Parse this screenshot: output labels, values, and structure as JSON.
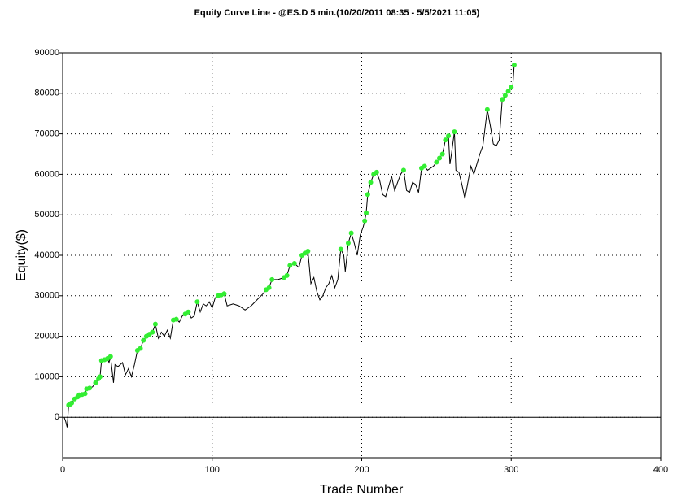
{
  "chart_data": {
    "type": "line",
    "title": "Equity Curve Line - @ES.D 5 min.(10/20/2011 08:35 - 5/5/2021 11:05)",
    "x_label": "Trade Number",
    "y_label": "Equity($)",
    "xlim": [
      0,
      400
    ],
    "xticks": [
      0,
      100,
      200,
      300,
      400
    ],
    "ylim": [
      -10000,
      90000
    ],
    "yticks": [
      0,
      10000,
      20000,
      30000,
      40000,
      50000,
      60000,
      70000,
      80000,
      90000
    ],
    "grid": true,
    "color": "#000000",
    "x": [
      1,
      2,
      3,
      4,
      5,
      6,
      8,
      10,
      11,
      13,
      15,
      16,
      18,
      20,
      22,
      24,
      25,
      26,
      28,
      30,
      31,
      32,
      34,
      35,
      37,
      40,
      42,
      44,
      46,
      48,
      50,
      52,
      54,
      56,
      58,
      60,
      62,
      64,
      66,
      68,
      70,
      72,
      74,
      76,
      78,
      80,
      82,
      84,
      86,
      88,
      90,
      92,
      94,
      96,
      98,
      100,
      102,
      104,
      106,
      108,
      110,
      114,
      118,
      122,
      126,
      130,
      134,
      136,
      138,
      140,
      144,
      148,
      150,
      152,
      155,
      158,
      160,
      162,
      164,
      166,
      168,
      170,
      172,
      174,
      176,
      178,
      180,
      182,
      184,
      186,
      188,
      189,
      191,
      193,
      195,
      197,
      199,
      201,
      202,
      203,
      204,
      206,
      208,
      210,
      212,
      214,
      216,
      218,
      220,
      222,
      224,
      226,
      228,
      230,
      232,
      234,
      236,
      238,
      240,
      242,
      244,
      246,
      248,
      250,
      252,
      254,
      256,
      258,
      259,
      260,
      262,
      263,
      265,
      267,
      269,
      271,
      273,
      275,
      277,
      279,
      281,
      284,
      286,
      288,
      290,
      292,
      294,
      296,
      298,
      300,
      301,
      302
    ],
    "values": [
      0,
      -1000,
      -2500,
      3000,
      3200,
      3500,
      4500,
      5000,
      5500,
      5600,
      5800,
      7000,
      7200,
      7500,
      8500,
      9500,
      10000,
      14000,
      14200,
      14500,
      13500,
      15000,
      8500,
      13000,
      12500,
      13500,
      10500,
      12000,
      10000,
      13000,
      16500,
      17000,
      19000,
      20000,
      20500,
      21000,
      23000,
      19500,
      21000,
      20000,
      21500,
      19500,
      24000,
      24200,
      23500,
      25000,
      25500,
      26000,
      24500,
      25000,
      28500,
      26000,
      28000,
      27500,
      28500,
      27000,
      29500,
      30000,
      30200,
      30500,
      27500,
      28000,
      27500,
      26500,
      27500,
      29000,
      30500,
      31500,
      32000,
      34000,
      34000,
      34500,
      35000,
      37500,
      38000,
      37000,
      40000,
      40500,
      41000,
      33000,
      34500,
      31000,
      29000,
      30000,
      32000,
      33000,
      35000,
      32000,
      34000,
      41500,
      40000,
      36000,
      43000,
      45500,
      43000,
      40000,
      45000,
      47000,
      48500,
      50500,
      55000,
      58000,
      60000,
      60500,
      58500,
      55000,
      54500,
      57000,
      59500,
      56000,
      58000,
      60000,
      61000,
      56000,
      55500,
      58000,
      57500,
      55500,
      61500,
      62000,
      61000,
      61500,
      62000,
      63000,
      64000,
      65000,
      68500,
      69500,
      62500,
      65000,
      70500,
      61000,
      60500,
      57500,
      54000,
      58000,
      62000,
      60000,
      62500,
      65000,
      67000,
      76000,
      72000,
      67500,
      67000,
      68500,
      78500,
      79500,
      80500,
      81500,
      81500,
      87000
    ],
    "highs": {
      "type": "scatter",
      "color": "#33ee33",
      "x": [
        4,
        5,
        6,
        8,
        10,
        11,
        13,
        15,
        16,
        18,
        22,
        24,
        25,
        26,
        28,
        30,
        32,
        50,
        52,
        54,
        56,
        58,
        60,
        62,
        74,
        76,
        82,
        84,
        90,
        104,
        106,
        108,
        136,
        138,
        140,
        148,
        150,
        152,
        155,
        160,
        162,
        164,
        186,
        191,
        193,
        202,
        203,
        204,
        206,
        208,
        210,
        228,
        240,
        242,
        250,
        252,
        254,
        256,
        258,
        262,
        284,
        294,
        296,
        298,
        300,
        302
      ],
      "values": [
        3000,
        3200,
        3500,
        4500,
        5000,
        5500,
        5600,
        5800,
        7000,
        7200,
        8500,
        9500,
        10000,
        14000,
        14200,
        14500,
        15000,
        16500,
        17000,
        19000,
        20000,
        20500,
        21000,
        23000,
        24000,
        24200,
        25500,
        26000,
        28500,
        30000,
        30200,
        30500,
        31500,
        32000,
        34000,
        34500,
        35000,
        37500,
        38000,
        40000,
        40500,
        41000,
        41500,
        43000,
        45500,
        48500,
        50500,
        55000,
        58000,
        60000,
        60500,
        61000,
        61500,
        62000,
        63000,
        64000,
        65000,
        68500,
        69500,
        70500,
        76000,
        78500,
        79500,
        80500,
        81500,
        87000
      ]
    }
  }
}
